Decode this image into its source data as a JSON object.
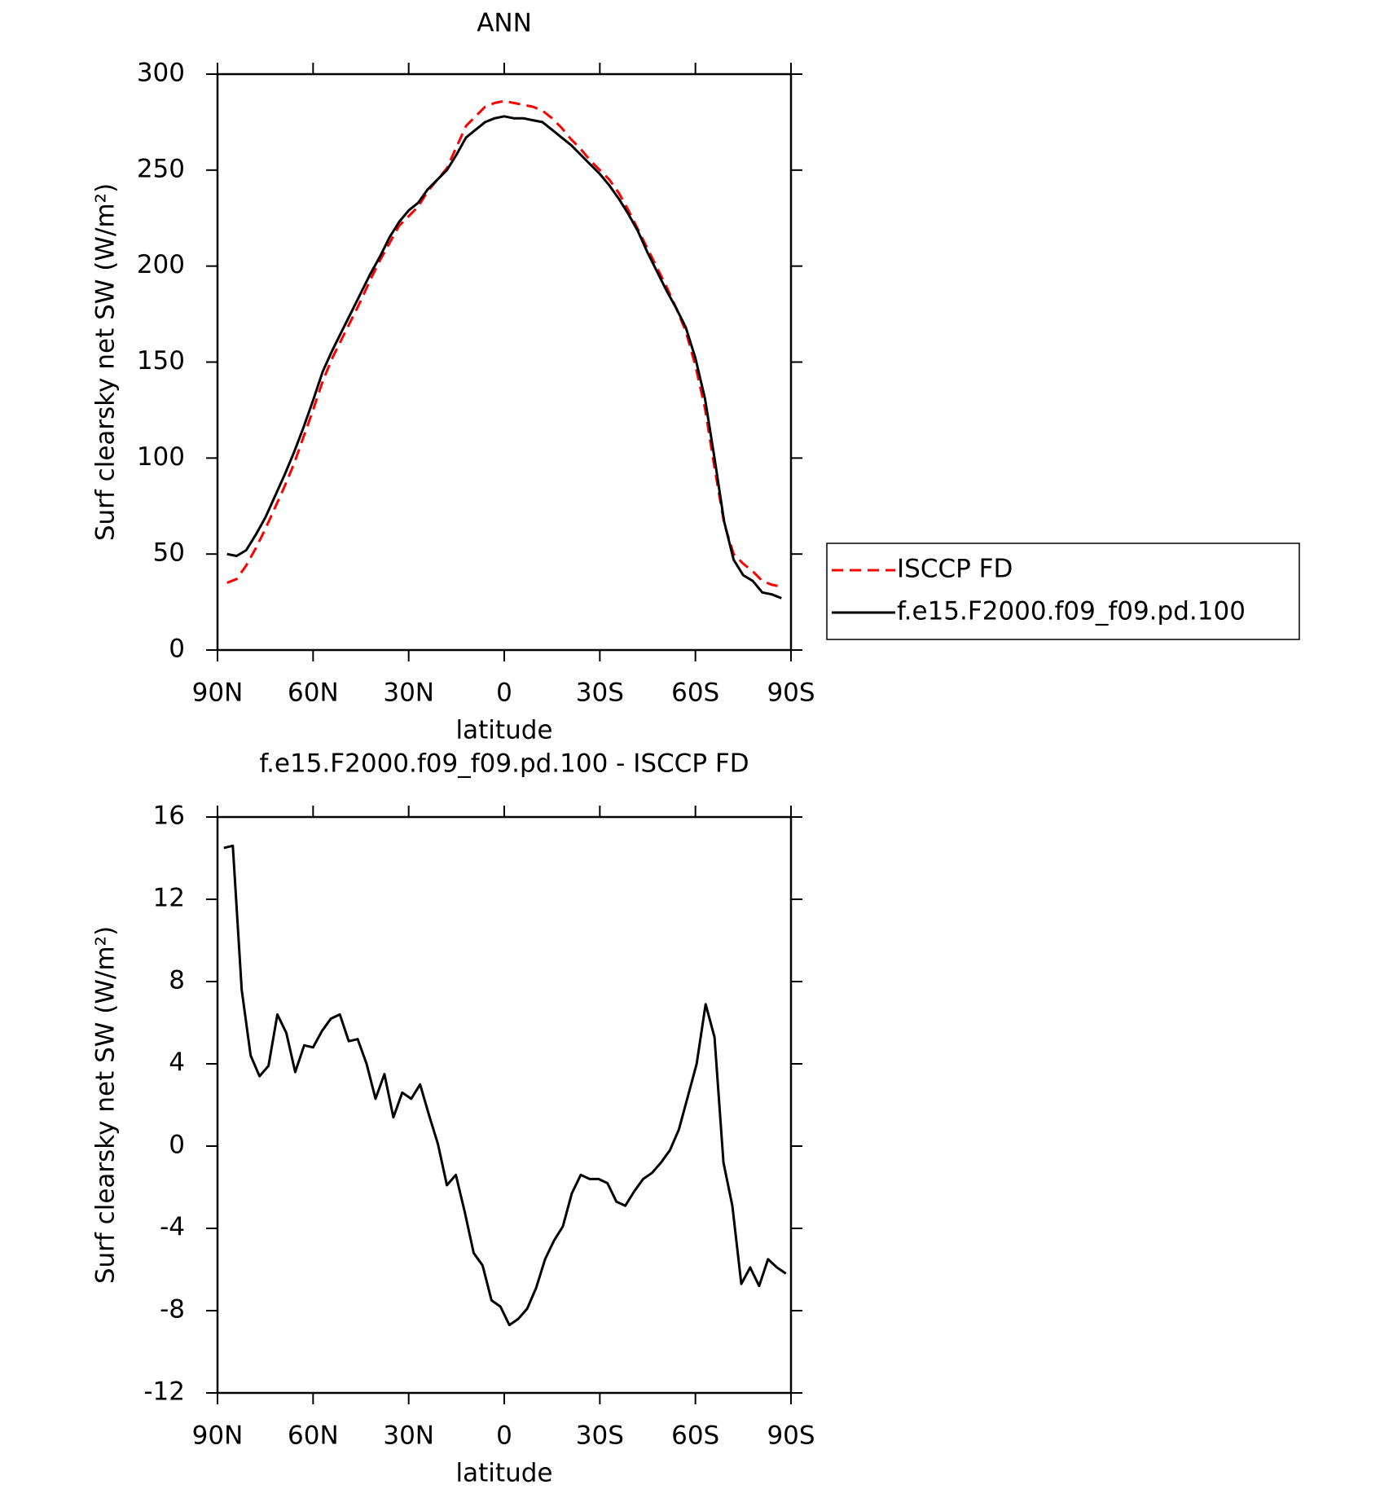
{
  "chart_data": [
    {
      "type": "line",
      "title": "ANN",
      "xlabel": "latitude",
      "ylabel": "Surf clearsky net SW (W/m²)",
      "x": [
        87,
        84,
        81,
        78,
        75,
        72,
        69,
        66,
        63,
        60,
        57,
        54,
        51,
        48,
        45,
        42,
        39,
        36,
        33,
        30,
        27,
        24,
        21,
        18,
        15,
        12,
        9,
        6,
        3,
        0,
        -3,
        -6,
        -9,
        -12,
        -15,
        -18,
        -21,
        -24,
        -27,
        -30,
        -33,
        -36,
        -39,
        -42,
        -45,
        -48,
        -51,
        -54,
        -57,
        -60,
        -63,
        -66,
        -69,
        -72,
        -75,
        -78,
        -81,
        -84,
        -87
      ],
      "series": [
        {
          "name": "ISCCP FD",
          "color": "#ff0000",
          "dashed": true,
          "values": [
            35,
            37,
            44,
            53,
            63,
            74,
            85,
            97,
            111,
            125,
            140,
            152,
            162,
            172,
            182,
            193,
            203,
            212,
            221,
            226,
            231,
            239,
            245,
            251,
            262,
            273,
            278,
            283,
            285,
            286,
            285,
            284,
            283,
            281,
            277,
            272,
            266,
            261,
            255,
            250,
            245,
            238,
            229,
            219,
            209,
            199,
            189,
            178,
            166,
            148,
            126,
            95,
            66,
            50,
            45,
            41,
            36,
            34,
            33
          ]
        },
        {
          "name": "f.e15.F2000.f09_f09.pd.100",
          "color": "#000000",
          "dashed": false,
          "values": [
            50,
            49,
            52,
            60,
            69,
            80,
            91,
            103,
            116,
            130,
            145,
            156,
            166,
            176,
            186,
            196,
            205,
            215,
            223,
            229,
            233,
            240,
            245,
            250,
            258,
            267,
            271,
            275,
            277,
            278,
            277,
            277,
            276,
            275,
            271,
            267,
            263,
            258,
            253,
            248,
            242,
            235,
            227,
            218,
            207,
            197,
            187,
            178,
            168,
            152,
            131,
            100,
            67,
            47,
            39,
            36,
            30,
            29,
            27
          ]
        }
      ],
      "xlim": [
        90,
        -90
      ],
      "xticks": [
        {
          "value": 90,
          "label": "90N"
        },
        {
          "value": 60,
          "label": "60N"
        },
        {
          "value": 30,
          "label": "30N"
        },
        0,
        {
          "value": -30,
          "label": "30S"
        },
        {
          "value": -60,
          "label": "60S"
        },
        {
          "value": -90,
          "label": "90S"
        }
      ],
      "ylim": [
        0,
        300
      ],
      "yticks": [
        0,
        50,
        100,
        150,
        200,
        250,
        300
      ],
      "legend": "right"
    },
    {
      "type": "line",
      "title": "f.e15.F2000.f09_f09.pd.100 - ISCCP FD",
      "xlabel": "latitude",
      "ylabel": "Surf clearsky net SW (W/m²)",
      "x": [
        88,
        85.2,
        82.4,
        79.6,
        76.8,
        74,
        71.2,
        68.4,
        65.6,
        62.8,
        60,
        57.2,
        54.4,
        51.6,
        48.8,
        46,
        43.2,
        40.4,
        37.6,
        34.8,
        32,
        29.2,
        26.4,
        23.6,
        20.8,
        18,
        15.2,
        12.4,
        9.6,
        6.8,
        4,
        1.2,
        -1.6,
        -4.4,
        -7.2,
        -10,
        -12.8,
        -15.6,
        -18.4,
        -21.2,
        -24,
        -26.8,
        -29.6,
        -32.4,
        -35.2,
        -38,
        -40.8,
        -43.6,
        -46.4,
        -49.2,
        -52,
        -54.8,
        -57.6,
        -60.4,
        -63.2,
        -66,
        -68.8,
        -71.6,
        -74.4,
        -77.2,
        -80,
        -82.8,
        -85.6,
        -88.4
      ],
      "series": [
        {
          "color": "#000000",
          "dashed": false,
          "values": [
            14.5,
            14.6,
            7.6,
            4.4,
            3.4,
            3.9,
            6.4,
            5.5,
            3.6,
            4.9,
            4.8,
            5.6,
            6.2,
            6.4,
            5.1,
            5.2,
            4.0,
            2.3,
            3.5,
            1.4,
            2.6,
            2.3,
            3.0,
            1.5,
            0.1,
            -1.9,
            -1.4,
            -3.2,
            -5.2,
            -5.8,
            -7.5,
            -7.8,
            -8.7,
            -8.4,
            -7.9,
            -6.9,
            -5.5,
            -4.6,
            -3.9,
            -2.3,
            -1.4,
            -1.6,
            -1.6,
            -1.8,
            -2.7,
            -2.9,
            -2.2,
            -1.6,
            -1.3,
            -0.8,
            -0.2,
            0.8,
            2.4,
            4.0,
            6.9,
            5.3,
            -0.8,
            -2.9,
            -6.7,
            -5.9,
            -6.8,
            -5.5,
            -5.9,
            -6.2
          ]
        }
      ],
      "xlim": [
        90,
        -90
      ],
      "xticks": [
        {
          "value": 90,
          "label": "90N"
        },
        {
          "value": 60,
          "label": "60N"
        },
        {
          "value": 30,
          "label": "30N"
        },
        0,
        {
          "value": -30,
          "label": "30S"
        },
        {
          "value": -60,
          "label": "60S"
        },
        {
          "value": -90,
          "label": "90S"
        }
      ],
      "ylim": [
        -12,
        16
      ],
      "yticks": [
        -12,
        -8,
        -4,
        0,
        4,
        8,
        12,
        16
      ]
    }
  ]
}
